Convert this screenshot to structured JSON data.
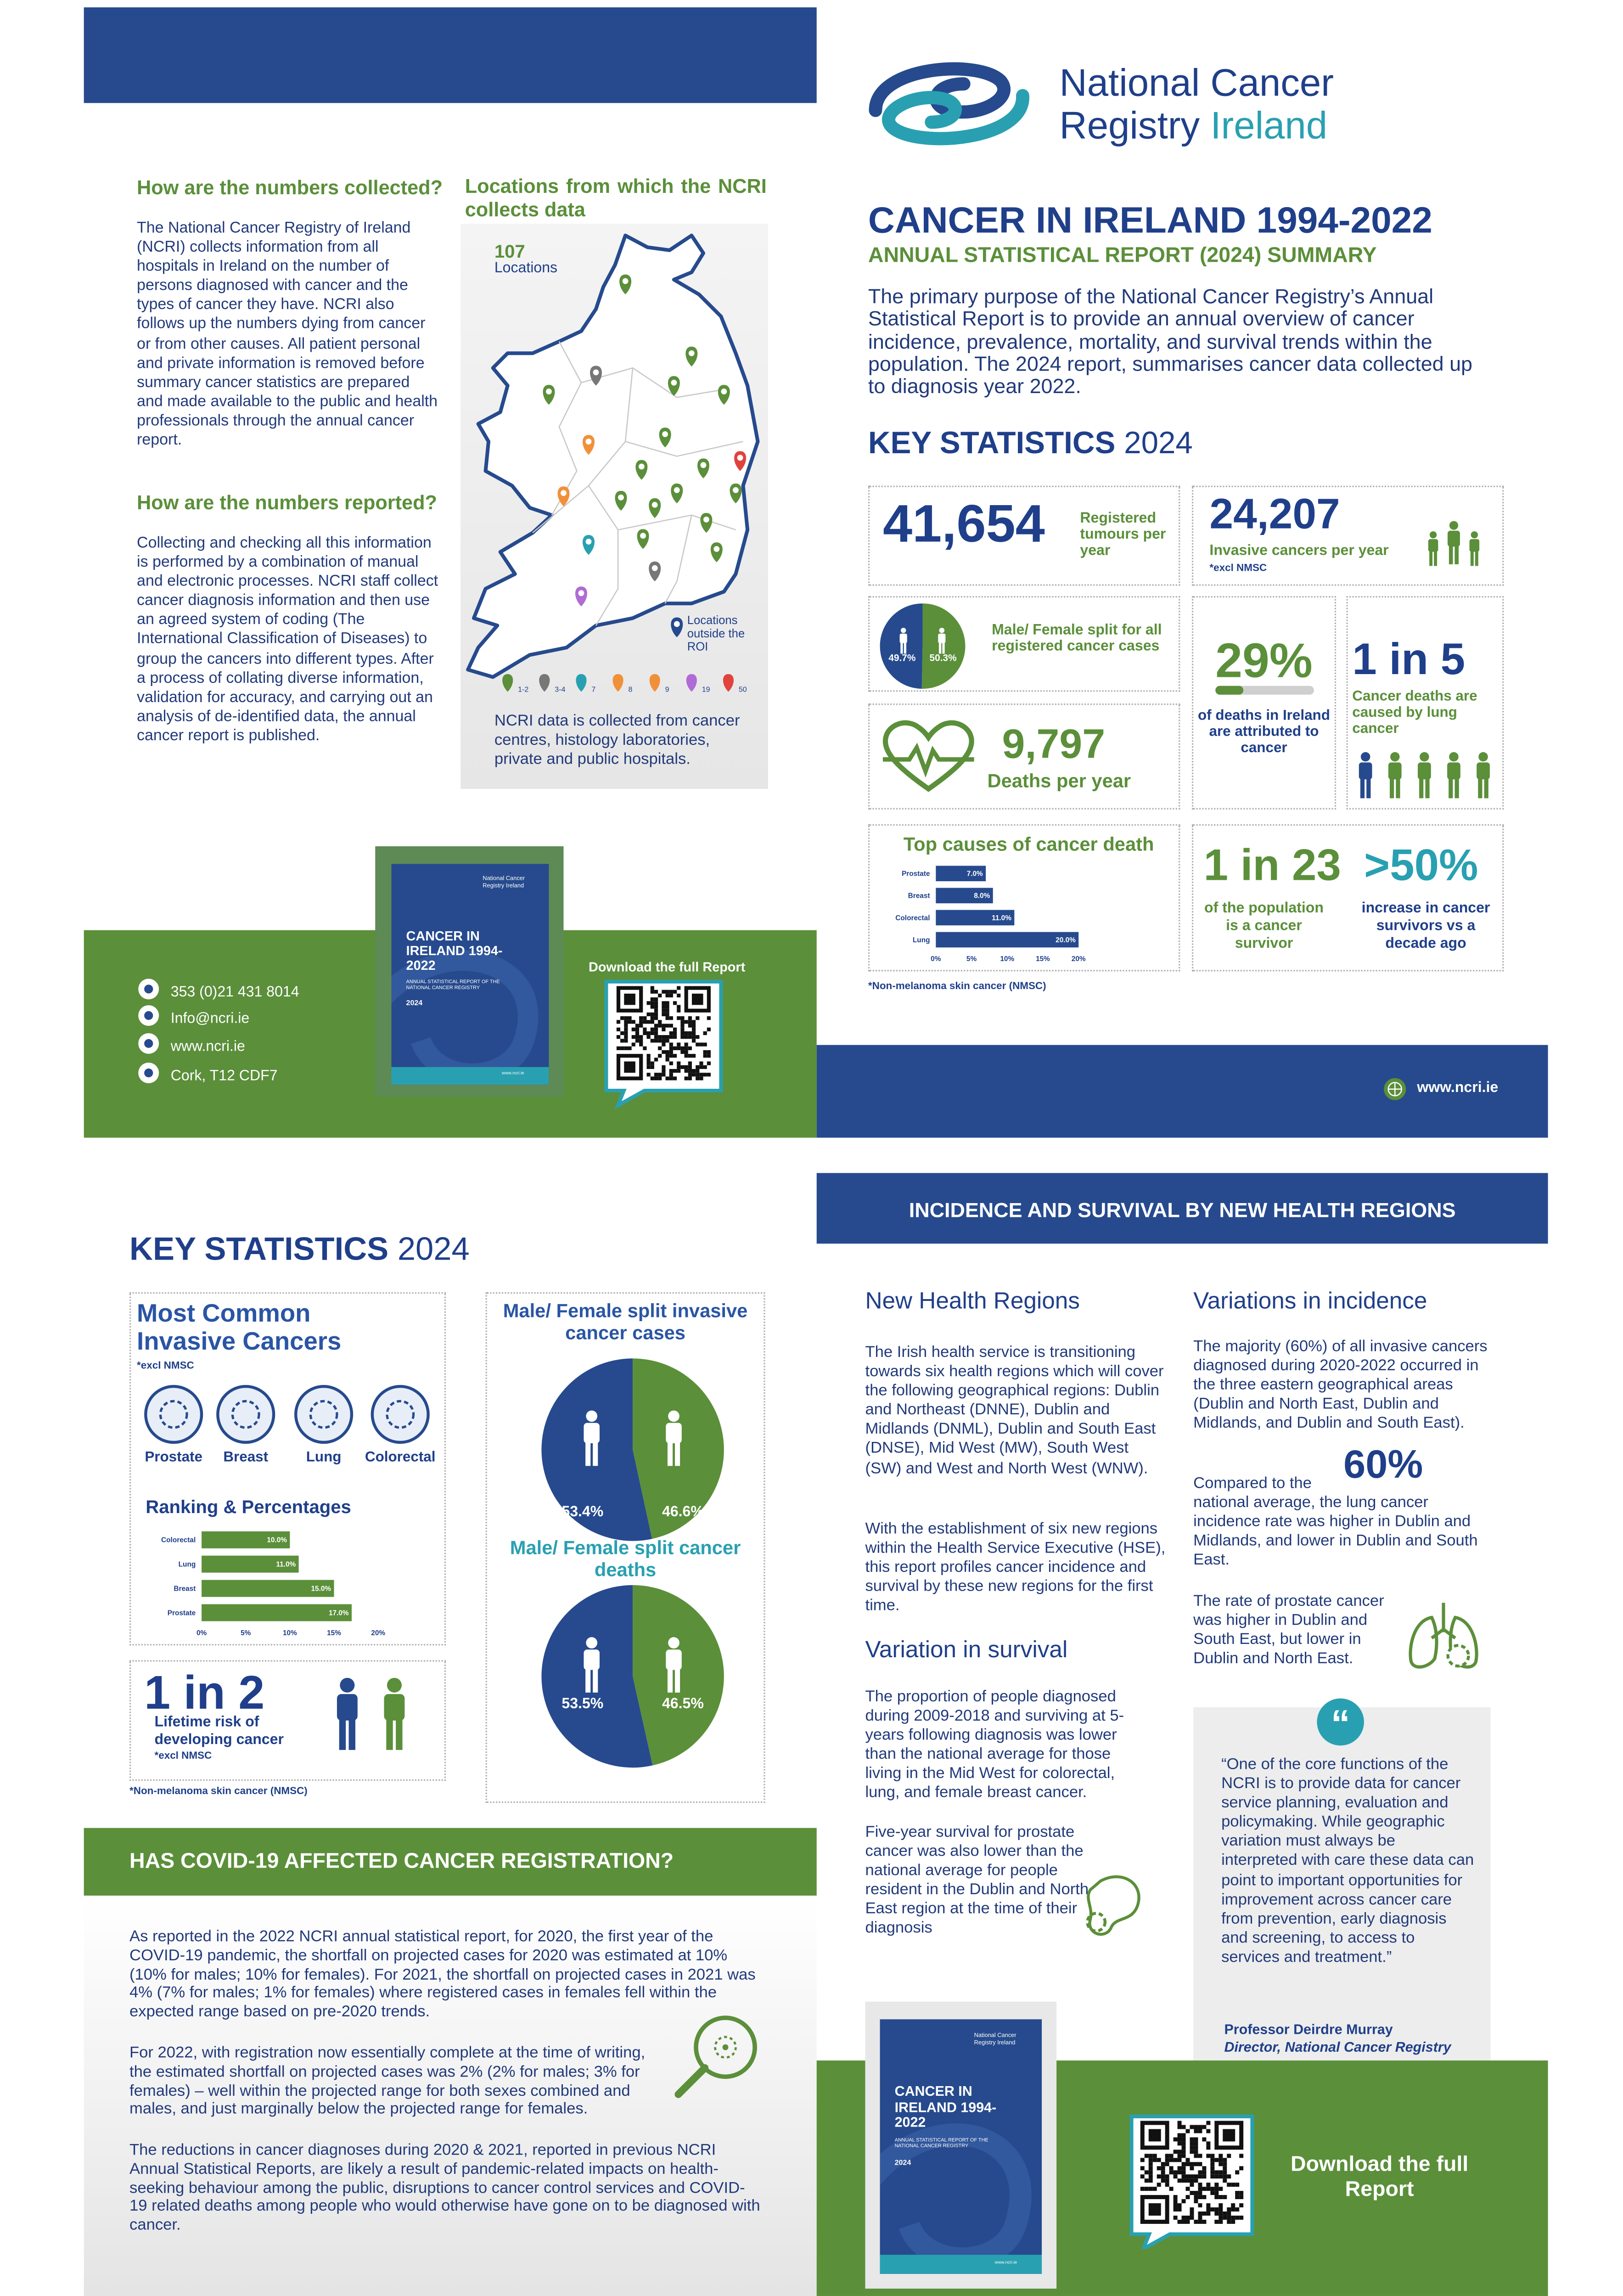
{
  "header": {
    "logo_line1": "National Cancer",
    "logo_line2_a": "Registry",
    "logo_line2_b": "Ireland"
  },
  "collection": {
    "heading": "How are the numbers collected?",
    "text": "The National Cancer Registry of Ireland (NCRI) collects information from all hospitals in Ireland on the number of persons diagnosed with cancer and the types of cancer they have. NCRI also follows up the numbers dying from cancer or from other causes. All patient personal and private information is removed before summary cancer statistics are prepared and made available to the public and health professionals through the annual cancer report.",
    "heading2": "How are the numbers reported?",
    "text2": "Collecting and checking all this information is performed by a combination of manual and electronic processes. NCRI staff collect cancer diagnosis information and then use an agreed system of coding (The International Classification of Diseases) to group the cancers into different types. After a process of collating diverse information, validation for accuracy, and carrying out an analysis of de-identified data, the annual cancer report is published."
  },
  "map": {
    "heading": "Locations from which the NCRI collects data",
    "count": "107",
    "count_label": "Locations",
    "outside_label": "Locations outside the ROI",
    "legend": [
      "1-2",
      "3-4",
      "7",
      "8",
      "9",
      "19",
      "50"
    ],
    "caption": "NCRI data is collected from cancer centres, histology laboratories, private and public hospitals."
  },
  "summary": {
    "title": "CANCER IN IRELAND 1994-2022",
    "subtitle": "ANNUAL STATISTICAL REPORT (2024) SUMMARY",
    "text": "The primary purpose of the National Cancer Registry’s Annual Statistical Report is to provide an annual overview of cancer incidence, prevalence, mortality, and survival trends within the population. The 2024 report, summarises cancer data collected up to diagnosis year 2022."
  },
  "key_stats": {
    "heading": "KEY STATISTICS",
    "year": "2024",
    "registered": {
      "figure": "41,654",
      "label": "Registered tumours per year"
    },
    "invasive": {
      "figure": "24,207",
      "label": "Invasive cancers per year",
      "note": "*excl NMSC"
    },
    "deaths": {
      "figure": "9,797",
      "label": "Deaths per year"
    },
    "deaths_share": {
      "figure": "29%",
      "label": "of deaths in Ireland are attributed to cancer"
    },
    "lung_share": {
      "figure": "1 in 5",
      "label": "Cancer deaths are caused by lung cancer"
    },
    "survivors": {
      "figure": "1 in 23",
      "label": "of the population is a cancer survivor"
    },
    "survivor_increase": {
      "figure": ">50%",
      "label": "increase in cancer survivors vs a decade ago"
    },
    "footnote": "*Non-melanoma skin cancer (NMSC)"
  },
  "contact": {
    "phone": "353 (0)21 431 8014",
    "email": "Info@ncri.ie",
    "web": "www.ncri.ie",
    "address": "Cork, T12 CDF7",
    "download": "Download the full Report"
  },
  "cover": {
    "org": "National Cancer Registry Ireland",
    "title": "CANCER IN IRELAND 1994-2022",
    "subtitle": "ANNUAL STATISTICAL REPORT OF THE NATIONAL CANCER REGISTRY",
    "year": "2024",
    "web": "www.ncri.ie"
  },
  "common": {
    "heading": "Most Common Invasive Cancers",
    "note": "*excl NMSC",
    "cancers": [
      "Prostate",
      "Breast",
      "Lung",
      "Colorectal"
    ]
  },
  "lifetime": {
    "figure": "1 in 2",
    "label": "Lifetime risk of developing cancer",
    "note": "*excl NMSC"
  },
  "regions": {
    "banner": "INCIDENCE AND SURVIVAL BY NEW HEALTH REGIONS",
    "heading": "New Health Regions",
    "text": [
      "The Irish health service is transitioning towards six health regions which will cover the following geographical regions: Dublin and Northeast (DNNE), Dublin and Midlands (DNML), Dublin and South East (DNSE), Mid West (MW), South West (SW) and West and North West (WNW).",
      "With the establishment of six new regions within the Health Service Executive (HSE), this report profiles cancer incidence and survival by these new regions for the first time."
    ],
    "survival_heading": "Variation in survival",
    "survival_text": [
      "The proportion of people diagnosed during 2009-2018 and surviving at 5-years following diagnosis was lower than the national average for those living in the Mid West for colorectal, lung, and female breast cancer.",
      "Five-year survival for prostate cancer was also lower than the national average for people resident in the Dublin and North East region at the time of their diagnosis"
    ],
    "incidence_heading": "Variations in incidence",
    "incidence_text": [
      "The majority (60%) of all invasive cancers diagnosed during 2020-2022 occurred in the three eastern geographical areas (Dublin and North East, Dublin and Midlands, and Dublin and South East).",
      "Compared to the national average, the lung cancer incidence rate was higher in Dublin and Midlands, and lower in Dublin and South East.",
      "The rate of prostate cancer was higher in Dublin and South East, but lower in Dublin and North East."
    ],
    "incidence_figure": "60%",
    "quote": "“One of the core functions of the NCRI is to provide data for cancer service planning, evaluation and policymaking. While geographic variation must always be interpreted with care these data can point to important opportunities for improvement across cancer care from prevention, early diagnosis and screening, to access to services and treatment.”",
    "quote_author": "Professor Deirdre Murray",
    "quote_role": "Director, National Cancer Registry"
  },
  "covid": {
    "heading": "HAS COVID-19 AFFECTED CANCER REGISTRATION?",
    "text": [
      "As reported in the 2022 NCRI annual statistical report, for 2020, the first year of the COVID-19 pandemic, the shortfall on projected cases for 2020 was estimated at 10% (10% for males; 10% for females). For 2021, the shortfall on projected cases in 2021 was 4% (7% for males; 1% for females) where registered cases in females fell within the expected range based on pre-2020 trends.",
      "For 2022, with registration now essentially complete at the time of writing, the estimated shortfall on projected cases was 2% (2% for males; 3% for females) – well within the projected range for both sexes combined and males, and just marginally below the projected range for females.",
      "The reductions in cancer diagnoses during 2020 & 2021, reported in previous NCRI Annual Statistical Reports, are likely a result of pandemic-related impacts on health-seeking behaviour among the public, disruptions to cancer control services and COVID-19 related deaths among people who would otherwise have gone on to be diagnosed with cancer."
    ]
  },
  "chart_data": [
    {
      "type": "bar",
      "orientation": "horizontal",
      "title": "Top causes of cancer death",
      "categories": [
        "Prostate",
        "Breast",
        "Colorectal",
        "Lung"
      ],
      "values": [
        7.0,
        8.0,
        11.0,
        20.0
      ],
      "value_labels": [
        "7.0%",
        "8.0%",
        "11.0%",
        "20.0%"
      ],
      "color": "#264a8d",
      "xlim": [
        0,
        20
      ],
      "xticks": [
        {
          "value": 0,
          "label": "0%"
        },
        {
          "value": 5,
          "label": "5%"
        },
        {
          "value": 10,
          "label": "10%"
        },
        {
          "value": 15,
          "label": "15%"
        },
        {
          "value": 20,
          "label": "20%"
        }
      ]
    },
    {
      "type": "bar",
      "orientation": "horizontal",
      "title": "Ranking & Percentages",
      "categories": [
        "Colorectal",
        "Lung",
        "Breast",
        "Prostate"
      ],
      "values": [
        10.0,
        11.0,
        15.0,
        17.0
      ],
      "value_labels": [
        "10.0%",
        "11.0%",
        "15.0%",
        "17.0%"
      ],
      "color": "#5b8f3a",
      "xlim": [
        0,
        20
      ],
      "xticks": [
        {
          "value": 0,
          "label": "0%"
        },
        {
          "value": 5,
          "label": "5%"
        },
        {
          "value": 10,
          "label": "10%"
        },
        {
          "value": 15,
          "label": "15%"
        },
        {
          "value": 20,
          "label": "20%"
        }
      ]
    },
    {
      "type": "pie",
      "title": "Male/ Female split for all registered cancer cases",
      "values": [
        49.7,
        50.3
      ],
      "value_labels": [
        "49.7%",
        "50.3%"
      ],
      "colors": [
        "#264a8d",
        "#5b8f3a"
      ]
    },
    {
      "type": "pie",
      "title": "Male/ Female split invasive cancer cases",
      "values": [
        53.4,
        46.6
      ],
      "value_labels": [
        "53.4%",
        "46.6%"
      ],
      "colors": [
        "#264a8d",
        "#5b8f3a"
      ]
    },
    {
      "type": "pie",
      "title": "Male/ Female split cancer deaths",
      "values": [
        53.5,
        46.5
      ],
      "value_labels": [
        "53.5%",
        "46.5%"
      ],
      "colors": [
        "#264a8d",
        "#5b8f3a"
      ]
    }
  ]
}
